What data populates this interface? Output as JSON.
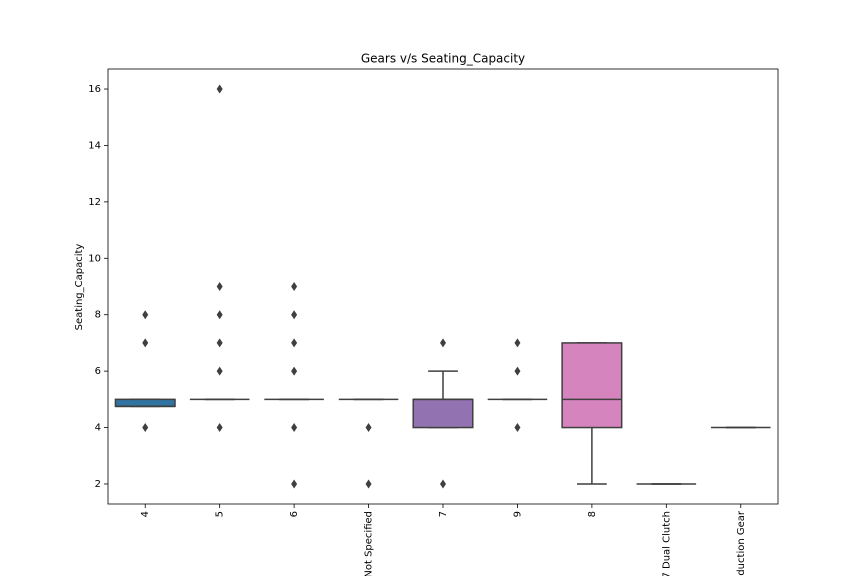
{
  "chart_data": {
    "type": "box",
    "title": "Gears v/s Seating_Capacity",
    "y_label": "Seating_Capacity",
    "categories": [
      "4",
      "5",
      "6",
      "Not Specified",
      "7",
      "9",
      "8",
      "7 Dual Clutch",
      "Reduction Gear"
    ],
    "colors": [
      "#3274a1",
      "#e1812c",
      "#3a923a",
      "#c03d3e",
      "#9372b2",
      "#845b53",
      "#d684bd",
      "#7f7f7f",
      "#a9aa35"
    ],
    "boxes": [
      {
        "whislo": 4.75,
        "q1": 4.75,
        "med": 4.75,
        "q3": 5,
        "whishi": 5,
        "fliers": [
          4,
          7,
          8
        ]
      },
      {
        "whislo": 5,
        "q1": 5,
        "med": 5,
        "q3": 5,
        "whishi": 5,
        "fliers": [
          4,
          6,
          7,
          8,
          9,
          16
        ]
      },
      {
        "whislo": 5,
        "q1": 5,
        "med": 5,
        "q3": 5,
        "whishi": 5,
        "fliers": [
          2,
          4,
          6,
          7,
          8,
          9
        ]
      },
      {
        "whislo": 5,
        "q1": 5,
        "med": 5,
        "q3": 5,
        "whishi": 5,
        "fliers": [
          2,
          4
        ]
      },
      {
        "whislo": 4,
        "q1": 4,
        "med": 5,
        "q3": 5,
        "whishi": 6,
        "fliers": [
          2,
          7
        ]
      },
      {
        "whislo": 5,
        "q1": 5,
        "med": 5,
        "q3": 5,
        "whishi": 5,
        "fliers": [
          4,
          6,
          7
        ]
      },
      {
        "whislo": 2,
        "q1": 4,
        "med": 5,
        "q3": 7,
        "whishi": 7,
        "fliers": []
      },
      {
        "whislo": 2,
        "q1": 2,
        "med": 2,
        "q3": 2,
        "whishi": 2,
        "fliers": []
      },
      {
        "whislo": 4,
        "q1": 4,
        "med": 4,
        "q3": 4,
        "whishi": 4,
        "fliers": []
      }
    ],
    "ylim": [
      1.29,
      16.71
    ],
    "yticks": [
      2,
      4,
      6,
      8,
      10,
      12,
      14,
      16
    ]
  }
}
